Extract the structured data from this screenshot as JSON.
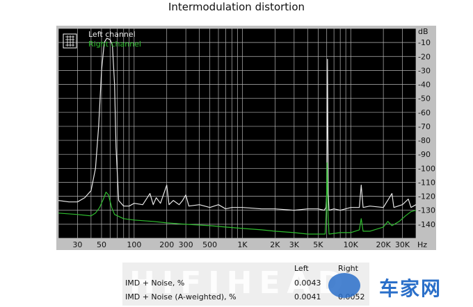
{
  "chart_data": {
    "type": "line",
    "title": "Intermodulation distortion",
    "x_unit": "Hz",
    "y_unit": "dB",
    "x_scale": "log",
    "xlim": [
      20,
      40000
    ],
    "ylim": [
      -150,
      0
    ],
    "grid": true,
    "legend_position": "top-left",
    "x_ticks": [
      {
        "v": 30,
        "label": "30"
      },
      {
        "v": 50,
        "label": "50"
      },
      {
        "v": 100,
        "label": "100"
      },
      {
        "v": 200,
        "label": "200"
      },
      {
        "v": 300,
        "label": "300"
      },
      {
        "v": 500,
        "label": "500"
      },
      {
        "v": 1000,
        "label": "1K"
      },
      {
        "v": 2000,
        "label": "2K"
      },
      {
        "v": 3000,
        "label": "3K"
      },
      {
        "v": 5000,
        "label": "5K"
      },
      {
        "v": 10000,
        "label": "10K"
      },
      {
        "v": 20000,
        "label": "20K"
      },
      {
        "v": 30000,
        "label": "30K"
      }
    ],
    "y_ticks": [
      -10,
      -20,
      -30,
      -40,
      -50,
      -60,
      -70,
      -80,
      -90,
      -100,
      -110,
      -120,
      -130,
      -140
    ],
    "series": [
      {
        "name": "Left channel",
        "color": "#e8e8e8",
        "points": [
          [
            20,
            -123
          ],
          [
            25,
            -124
          ],
          [
            30,
            -124
          ],
          [
            35,
            -121
          ],
          [
            40,
            -116
          ],
          [
            44,
            -100
          ],
          [
            47,
            -70
          ],
          [
            50,
            -30
          ],
          [
            53,
            -10
          ],
          [
            56,
            -7
          ],
          [
            60,
            -8
          ],
          [
            63,
            -12
          ],
          [
            66,
            -40
          ],
          [
            68,
            -85
          ],
          [
            72,
            -123
          ],
          [
            80,
            -127
          ],
          [
            90,
            -127
          ],
          [
            100,
            -125
          ],
          [
            120,
            -126
          ],
          [
            140,
            -118
          ],
          [
            150,
            -126
          ],
          [
            160,
            -121
          ],
          [
            175,
            -125
          ],
          [
            200,
            -112
          ],
          [
            210,
            -126
          ],
          [
            230,
            -123
          ],
          [
            260,
            -126
          ],
          [
            280,
            -123
          ],
          [
            300,
            -119
          ],
          [
            320,
            -127
          ],
          [
            400,
            -126
          ],
          [
            500,
            -128
          ],
          [
            600,
            -126
          ],
          [
            700,
            -129
          ],
          [
            800,
            -128
          ],
          [
            1000,
            -128
          ],
          [
            1500,
            -129
          ],
          [
            2000,
            -129
          ],
          [
            3000,
            -130
          ],
          [
            4000,
            -129
          ],
          [
            5000,
            -129
          ],
          [
            5700,
            -130
          ],
          [
            5900,
            -128
          ],
          [
            6000,
            -118
          ],
          [
            6100,
            -22
          ],
          [
            6200,
            -118
          ],
          [
            6300,
            -130
          ],
          [
            7000,
            -129
          ],
          [
            8000,
            -130
          ],
          [
            10000,
            -128
          ],
          [
            12000,
            -128
          ],
          [
            12500,
            -112
          ],
          [
            13000,
            -128
          ],
          [
            15000,
            -127
          ],
          [
            20000,
            -128
          ],
          [
            24000,
            -118
          ],
          [
            25000,
            -128
          ],
          [
            30000,
            -126
          ],
          [
            34000,
            -122
          ],
          [
            36000,
            -128
          ],
          [
            40000,
            -126
          ]
        ]
      },
      {
        "name": "Right channel",
        "color": "#2fbf2f",
        "points": [
          [
            20,
            -132
          ],
          [
            30,
            -133
          ],
          [
            40,
            -134
          ],
          [
            44,
            -132
          ],
          [
            48,
            -128
          ],
          [
            52,
            -122
          ],
          [
            55,
            -117
          ],
          [
            58,
            -119
          ],
          [
            62,
            -128
          ],
          [
            66,
            -133
          ],
          [
            80,
            -136
          ],
          [
            100,
            -137
          ],
          [
            150,
            -138
          ],
          [
            200,
            -139
          ],
          [
            300,
            -140
          ],
          [
            500,
            -141
          ],
          [
            700,
            -142
          ],
          [
            1000,
            -143
          ],
          [
            1500,
            -144
          ],
          [
            2000,
            -145
          ],
          [
            3000,
            -146
          ],
          [
            4000,
            -147
          ],
          [
            5000,
            -147
          ],
          [
            5800,
            -147
          ],
          [
            5950,
            -130
          ],
          [
            6050,
            -96
          ],
          [
            6150,
            -130
          ],
          [
            6300,
            -147
          ],
          [
            8000,
            -146
          ],
          [
            10000,
            -146
          ],
          [
            12000,
            -144
          ],
          [
            12500,
            -136
          ],
          [
            13000,
            -145
          ],
          [
            15000,
            -145
          ],
          [
            20000,
            -142
          ],
          [
            22000,
            -138
          ],
          [
            24000,
            -141
          ],
          [
            28000,
            -138
          ],
          [
            32000,
            -134
          ],
          [
            36000,
            -131
          ],
          [
            40000,
            -130
          ]
        ]
      }
    ]
  },
  "results": {
    "col_left": "Left",
    "col_right": "Right",
    "row1_label": "IMD + Noise, %",
    "row1_left": "0.0043",
    "row1_right": "",
    "row2_label": "IMD + Noise (A-weighted), %",
    "row2_left": "0.0041",
    "row2_right": "0.0052"
  },
  "watermark_text": "HIFIHEAD",
  "logo_text": "车家网"
}
